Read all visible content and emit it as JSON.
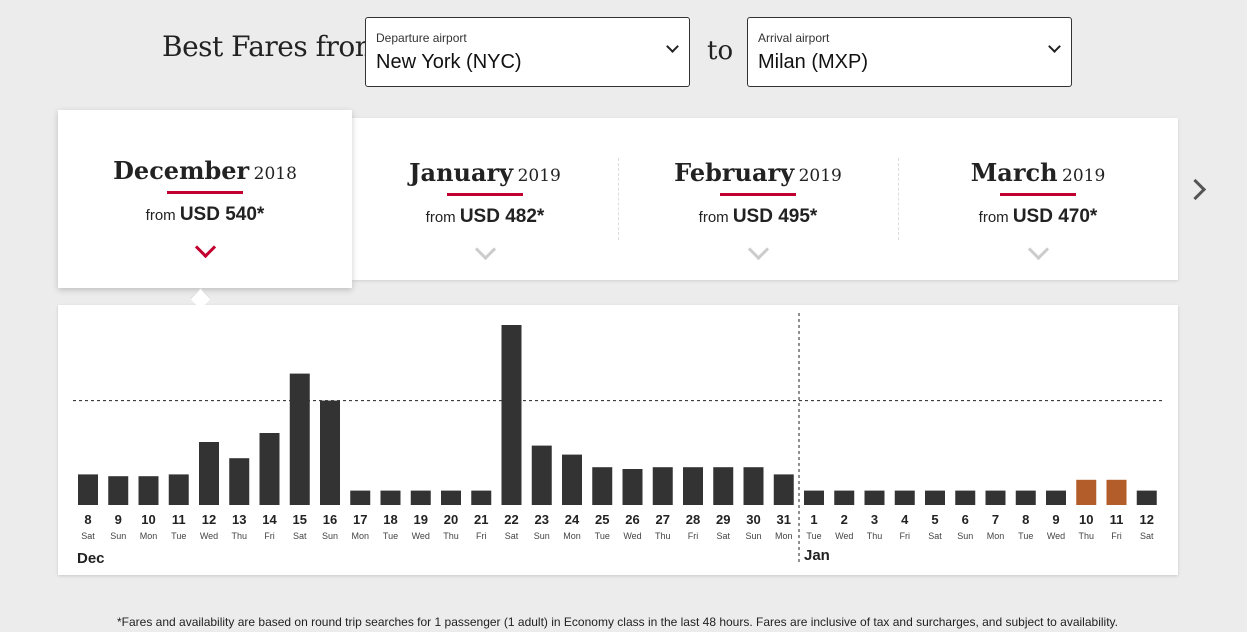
{
  "header": {
    "title": "Best Fares from",
    "departure": {
      "label": "Departure airport",
      "value": "New York (NYC)"
    },
    "connector": "to",
    "arrival": {
      "label": "Arrival airport",
      "value": "Milan (MXP)"
    }
  },
  "months": [
    {
      "name": "December",
      "year": "2018",
      "from": "from",
      "price": "USD 540*",
      "active": true
    },
    {
      "name": "January",
      "year": "2019",
      "from": "from",
      "price": "USD 482*",
      "active": false
    },
    {
      "name": "February",
      "year": "2019",
      "from": "from",
      "price": "USD 495*",
      "active": false
    },
    {
      "name": "March",
      "year": "2019",
      "from": "from",
      "price": "USD 470*",
      "active": false
    }
  ],
  "colors": {
    "accent": "#c2002f",
    "bar": "#333333",
    "bar_highlight": "#b35e2a"
  },
  "icons": {
    "next": "chevron-right-icon",
    "expand": "chevron-down-icon"
  },
  "chart_data": {
    "type": "bar",
    "ylim": [
      0,
      100
    ],
    "reference_line": 58,
    "days": [
      "8",
      "9",
      "10",
      "11",
      "12",
      "13",
      "14",
      "15",
      "16",
      "17",
      "18",
      "19",
      "20",
      "21",
      "22",
      "23",
      "24",
      "25",
      "26",
      "27",
      "28",
      "29",
      "30",
      "31",
      "1",
      "2",
      "3",
      "4",
      "5",
      "6",
      "7",
      "8",
      "9",
      "10",
      "11",
      "12"
    ],
    "weekdays": [
      "Sat",
      "Sun",
      "Mon",
      "Tue",
      "Wed",
      "Thu",
      "Fri",
      "Sat",
      "Sun",
      "Mon",
      "Tue",
      "Wed",
      "Thu",
      "Fri",
      "Sat",
      "Sun",
      "Mon",
      "Tue",
      "Wed",
      "Thu",
      "Fri",
      "Sat",
      "Sun",
      "Mon",
      "Tue",
      "Wed",
      "Thu",
      "Fri",
      "Sat",
      "Sun",
      "Mon",
      "Tue",
      "Wed",
      "Thu",
      "Fri",
      "Sat"
    ],
    "values": [
      17,
      16,
      16,
      17,
      35,
      26,
      40,
      73,
      58,
      8,
      8,
      8,
      8,
      8,
      100,
      33,
      28,
      21,
      20,
      21,
      21,
      21,
      21,
      17,
      8,
      8,
      8,
      8,
      8,
      8,
      8,
      8,
      8,
      14,
      14,
      8
    ],
    "highlighted": [
      false,
      false,
      false,
      false,
      false,
      false,
      false,
      false,
      false,
      false,
      false,
      false,
      false,
      false,
      false,
      false,
      false,
      false,
      false,
      false,
      false,
      false,
      false,
      false,
      false,
      false,
      false,
      false,
      false,
      false,
      false,
      false,
      false,
      true,
      true,
      false
    ],
    "month_labels": [
      {
        "text": "Dec",
        "start_index": 0
      },
      {
        "text": "Jan",
        "start_index": 24
      }
    ]
  },
  "footnote": "*Fares and availability are based on round trip searches for 1 passenger (1 adult) in Economy class in the last 48 hours. Fares are inclusive of tax and surcharges, and subject to availability."
}
